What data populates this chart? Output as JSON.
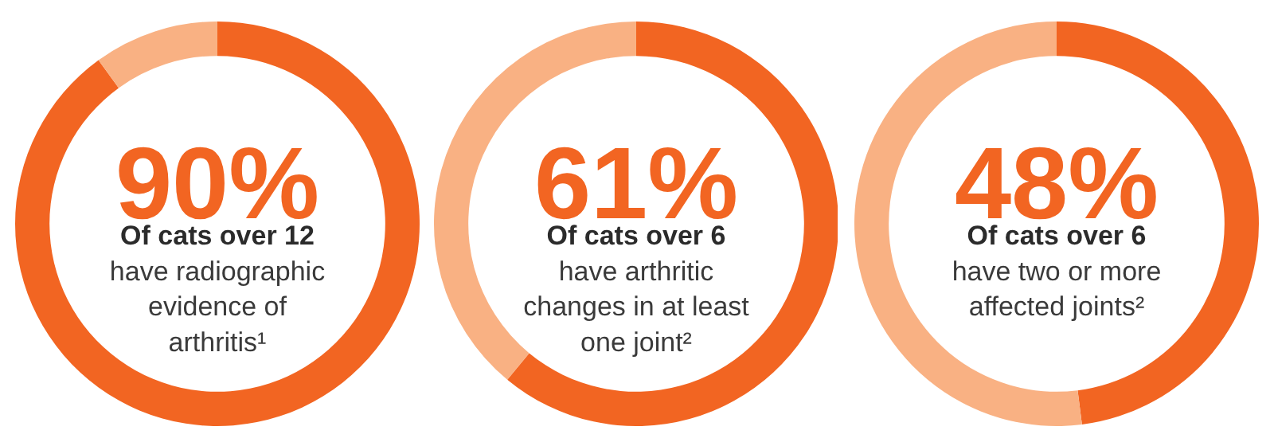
{
  "chart_data": [
    {
      "type": "donut",
      "categories": [
        null,
        null
      ],
      "values": [
        90,
        10
      ],
      "colors": [
        "#f26522",
        "#f9b183"
      ],
      "value_labels": [
        "90%",
        null
      ],
      "annotations": [
        "Of cats over 12",
        "have radiographic",
        "evidence of",
        "arthritis¹"
      ]
    },
    {
      "type": "donut",
      "categories": [
        null,
        null
      ],
      "values": [
        61,
        39
      ],
      "colors": [
        "#f26522",
        "#f9b183"
      ],
      "value_labels": [
        "61%",
        null
      ],
      "annotations": [
        "Of cats over 6",
        "have arthritic",
        "changes in at least",
        "one joint²"
      ]
    },
    {
      "type": "donut",
      "categories": [
        null,
        null
      ],
      "values": [
        48,
        52
      ],
      "colors": [
        "#f26522",
        "#f9b183"
      ],
      "value_labels": [
        "48%",
        null
      ],
      "annotations": [
        "Of cats over 6",
        "have two or more",
        "affected joints²"
      ]
    }
  ]
}
